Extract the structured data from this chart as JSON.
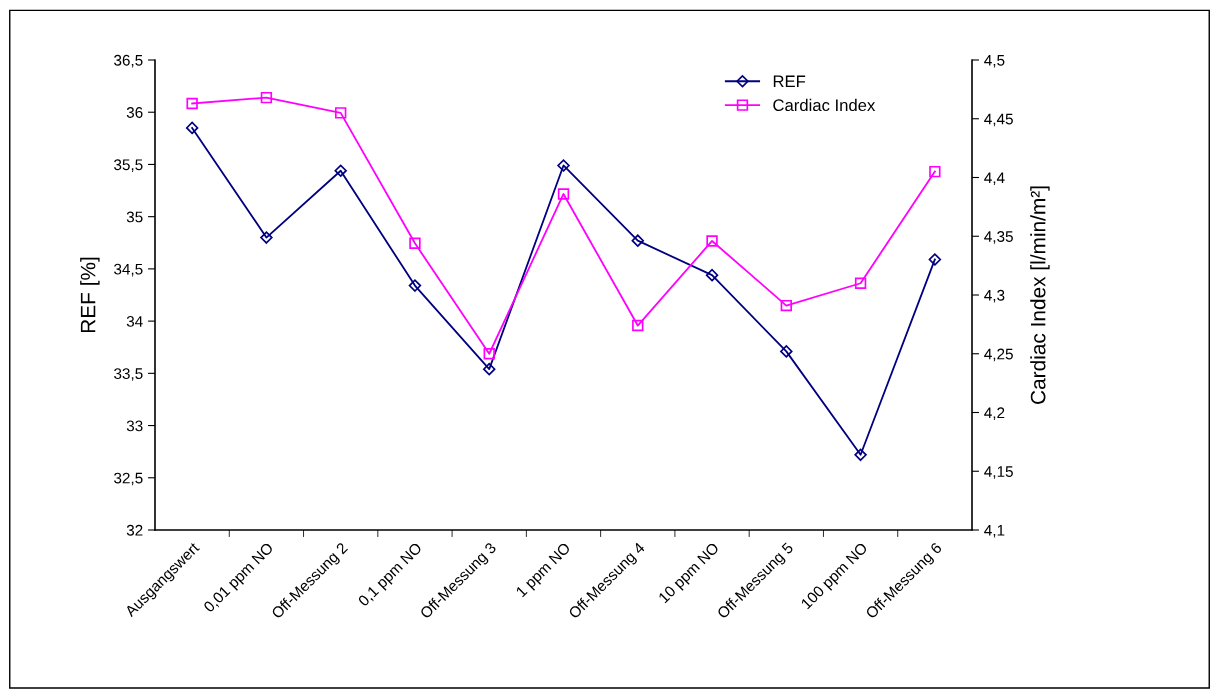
{
  "chart_data": {
    "type": "line",
    "categories": [
      "Ausgangswert",
      "0,01 ppm NO",
      "Off-Messung 2",
      "0,1 ppm NO",
      "Off-Messung 3",
      "1 ppm NO",
      "Off-Messung 4",
      "10 ppm NO",
      "Off-Messung 5",
      "100 ppm NO",
      "Off-Messung 6"
    ],
    "series": [
      {
        "name": "REF",
        "color": "#000080",
        "marker": "diamond",
        "values": [
          35.85,
          34.8,
          35.44,
          34.34,
          33.54,
          35.49,
          34.77,
          34.44,
          33.71,
          32.72,
          34.59
        ]
      },
      {
        "name": "Cardiac Index",
        "color": "#ff00ff",
        "marker": "square",
        "axis": "y2",
        "values": [
          4.463,
          4.468,
          4.455,
          4.344,
          4.25,
          4.386,
          4.274,
          4.346,
          4.291,
          4.31,
          4.405
        ]
      }
    ],
    "ylabel": "REF [%]",
    "y2label": "Cardiac Index [l/min/m²]",
    "ylim": [
      32,
      36.5
    ],
    "yticks": [
      32,
      {
        "value": 32.5,
        "label": "32,5"
      },
      33,
      {
        "value": 33.5,
        "label": "33,5"
      },
      34,
      {
        "value": 34.5,
        "label": "34,5"
      },
      35,
      {
        "value": 35.5,
        "label": "35,5"
      },
      36,
      {
        "value": 36.5,
        "label": "36,5"
      }
    ],
    "y2lim": [
      4.1,
      4.5
    ],
    "y2ticks": [
      {
        "value": 4.1,
        "label": "4,1"
      },
      {
        "value": 4.15,
        "label": "4,15"
      },
      {
        "value": 4.2,
        "label": "4,2"
      },
      {
        "value": 4.25,
        "label": "4,25"
      },
      {
        "value": 4.3,
        "label": "4,3"
      },
      {
        "value": 4.35,
        "label": "4,35"
      },
      {
        "value": 4.4,
        "label": "4,4"
      },
      {
        "value": 4.45,
        "label": "4,45"
      },
      {
        "value": 4.5,
        "label": "4,5"
      }
    ],
    "legend": "top right",
    "grid": false,
    "line_style": "solid"
  }
}
